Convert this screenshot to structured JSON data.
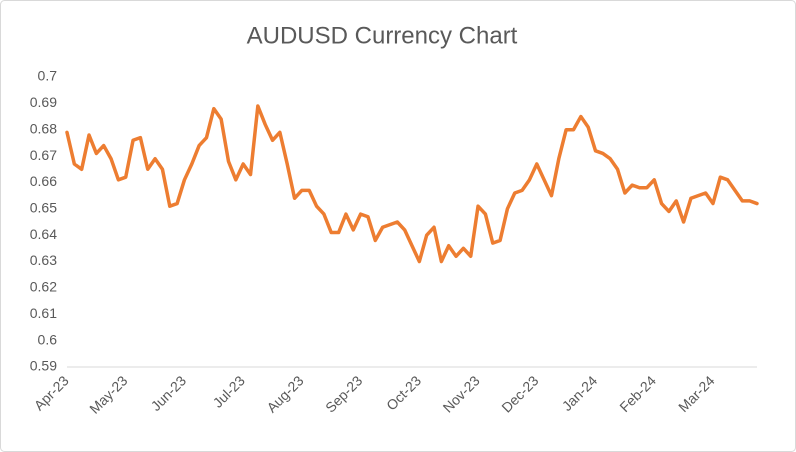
{
  "chart_data": {
    "type": "line",
    "title": "AUDUSD Currency Chart",
    "categories": [
      "Apr-23",
      null,
      null,
      null,
      null,
      null,
      null,
      null,
      "May-23",
      null,
      null,
      null,
      null,
      null,
      null,
      null,
      "Jun-23",
      null,
      null,
      null,
      null,
      null,
      null,
      null,
      "Jul-23",
      null,
      null,
      null,
      null,
      null,
      null,
      null,
      "Aug-23",
      null,
      null,
      null,
      null,
      null,
      null,
      null,
      "Sep-23",
      null,
      null,
      null,
      null,
      null,
      null,
      null,
      "Oct-23",
      null,
      null,
      null,
      null,
      null,
      null,
      null,
      "Nov-23",
      null,
      null,
      null,
      null,
      null,
      null,
      null,
      "Dec-23",
      null,
      null,
      null,
      null,
      null,
      null,
      null,
      "Jan-24",
      null,
      null,
      null,
      null,
      null,
      null,
      null,
      "Feb-24",
      null,
      null,
      null,
      null,
      null,
      null,
      null,
      "Mar-24",
      null,
      null,
      null,
      null,
      null,
      null
    ],
    "values": [
      0.679,
      0.667,
      0.665,
      0.678,
      0.671,
      0.674,
      0.669,
      0.661,
      0.662,
      0.676,
      0.677,
      0.665,
      0.669,
      0.665,
      0.651,
      0.652,
      0.661,
      0.667,
      0.674,
      0.677,
      0.688,
      0.684,
      0.668,
      0.661,
      0.667,
      0.663,
      0.689,
      0.682,
      0.676,
      0.679,
      0.667,
      0.654,
      0.657,
      0.657,
      0.651,
      0.648,
      0.641,
      0.641,
      0.648,
      0.642,
      0.648,
      0.647,
      0.638,
      0.643,
      0.644,
      0.645,
      0.642,
      0.636,
      0.63,
      0.64,
      0.643,
      0.63,
      0.636,
      0.632,
      0.635,
      0.632,
      0.651,
      0.648,
      0.637,
      0.638,
      0.65,
      0.656,
      0.657,
      0.661,
      0.667,
      0.661,
      0.655,
      0.669,
      0.68,
      0.68,
      0.685,
      0.681,
      0.672,
      0.671,
      0.669,
      0.665,
      0.656,
      0.659,
      0.658,
      0.658,
      0.661,
      0.652,
      0.649,
      0.653,
      0.645,
      0.654,
      0.655,
      0.656,
      0.652,
      0.662,
      0.661,
      0.657,
      0.653,
      0.653,
      0.652
    ],
    "color": "#ed7d31",
    "ylim": [
      0.59,
      0.7
    ],
    "yticks": [
      0.59,
      0.6,
      0.61,
      0.62,
      0.63,
      0.64,
      0.65,
      0.66,
      0.67,
      0.68,
      0.69,
      0.7
    ],
    "grid": false
  }
}
